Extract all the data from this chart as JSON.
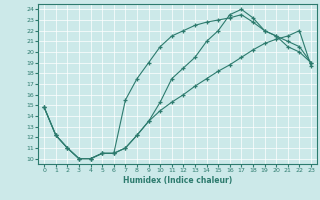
{
  "xlabel": "Humidex (Indice chaleur)",
  "xlim": [
    -0.5,
    23.5
  ],
  "ylim": [
    9.5,
    24.5
  ],
  "xticks": [
    0,
    1,
    2,
    3,
    4,
    5,
    6,
    7,
    8,
    9,
    10,
    11,
    12,
    13,
    14,
    15,
    16,
    17,
    18,
    19,
    20,
    21,
    22,
    23
  ],
  "yticks": [
    10,
    11,
    12,
    13,
    14,
    15,
    16,
    17,
    18,
    19,
    20,
    21,
    22,
    23,
    24
  ],
  "line_color": "#2d7b6e",
  "bg_color": "#cce9e9",
  "grid_color": "#ffffff",
  "line1_x": [
    0,
    1,
    2,
    3,
    4,
    5,
    6,
    7,
    8,
    9,
    10,
    11,
    12,
    13,
    14,
    15,
    16,
    17,
    18,
    19,
    20,
    21,
    22,
    23
  ],
  "line1_y": [
    14.8,
    12.2,
    11.0,
    10.0,
    10.0,
    10.5,
    10.5,
    11.0,
    12.2,
    13.5,
    15.3,
    17.5,
    18.5,
    19.5,
    21.0,
    22.0,
    23.5,
    24.0,
    23.2,
    22.0,
    21.5,
    20.5,
    20.0,
    19.0
  ],
  "line2_x": [
    0,
    1,
    2,
    3,
    4,
    5,
    6,
    7,
    8,
    9,
    10,
    11,
    12,
    13,
    14,
    15,
    16,
    17,
    18,
    19,
    20,
    21,
    22,
    23
  ],
  "line2_y": [
    14.8,
    12.2,
    11.0,
    10.0,
    10.0,
    10.5,
    10.5,
    15.5,
    17.5,
    19.0,
    20.5,
    21.5,
    22.0,
    22.5,
    22.8,
    23.0,
    23.2,
    23.5,
    22.8,
    22.0,
    21.5,
    21.0,
    20.5,
    19.0
  ],
  "line3_x": [
    0,
    1,
    2,
    3,
    4,
    5,
    6,
    7,
    8,
    9,
    10,
    11,
    12,
    13,
    14,
    15,
    16,
    17,
    18,
    19,
    20,
    21,
    22,
    23
  ],
  "line3_y": [
    14.8,
    12.2,
    11.0,
    10.0,
    10.0,
    10.5,
    10.5,
    11.0,
    12.2,
    13.5,
    14.5,
    15.3,
    16.0,
    16.8,
    17.5,
    18.2,
    18.8,
    19.5,
    20.2,
    20.8,
    21.2,
    21.5,
    22.0,
    18.7
  ]
}
